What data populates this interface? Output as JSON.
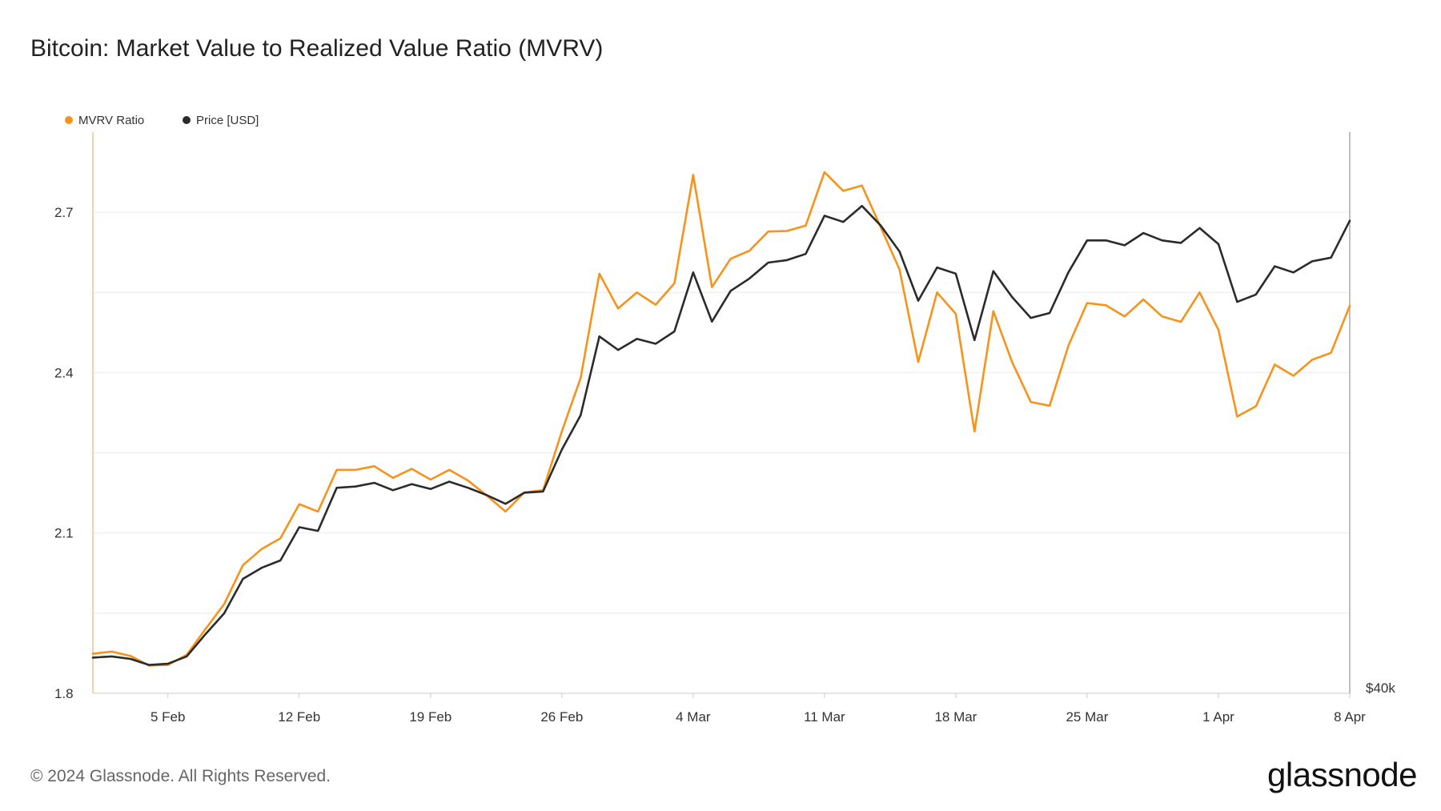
{
  "title": "Bitcoin: Market Value to Realized Value Ratio (MVRV)",
  "footer": {
    "copyright": "© 2024 Glassnode. All Rights Reserved.",
    "brand": "glassnode"
  },
  "colors": {
    "mvrv": "#f7931a",
    "price": "#2b2b2b",
    "grid": "#ececec",
    "axis": "#cccccc"
  },
  "chart_data": {
    "type": "line",
    "title": "Bitcoin: Market Value to Realized Value Ratio (MVRV)",
    "legend_position": "top-left",
    "grid": true,
    "x_start": "2024-02-01",
    "x_end": "2024-04-08",
    "x_ticks": [
      "5 Feb",
      "12 Feb",
      "19 Feb",
      "26 Feb",
      "4 Mar",
      "11 Mar",
      "18 Mar",
      "25 Mar",
      "1 Apr",
      "8 Apr"
    ],
    "y_left": {
      "ticks": [
        "1.8",
        "2.1",
        "2.4",
        "2.7"
      ],
      "ylim": [
        1.8,
        2.85
      ]
    },
    "y_right": {
      "ticks": [
        "$40k"
      ]
    },
    "series": [
      {
        "name": "MVRV Ratio",
        "axis": "left",
        "values": [
          1.874,
          1.878,
          1.87,
          1.852,
          1.853,
          1.872,
          1.92,
          1.967,
          2.04,
          2.07,
          2.09,
          2.154,
          2.14,
          2.218,
          2.218,
          2.225,
          2.203,
          2.22,
          2.2,
          2.218,
          2.198,
          2.17,
          2.14,
          2.176,
          2.18,
          2.29,
          2.39,
          2.585,
          2.52,
          2.55,
          2.527,
          2.567,
          2.77,
          2.56,
          2.613,
          2.628,
          2.664,
          2.665,
          2.675,
          2.775,
          2.74,
          2.75,
          2.672,
          2.593,
          2.42,
          2.55,
          2.51,
          2.29,
          2.515,
          2.42,
          2.345,
          2.338,
          2.45,
          2.53,
          2.526,
          2.505,
          2.537,
          2.505,
          2.495,
          2.55,
          2.48,
          2.318,
          2.337,
          2.415,
          2.394,
          2.424,
          2.437,
          2.525
        ]
      },
      {
        "name": "Price [USD]",
        "axis": "right",
        "values": [
          42900,
          43000,
          42800,
          42300,
          42400,
          43000,
          44800,
          46500,
          49300,
          50200,
          50800,
          53500,
          53200,
          56700,
          56800,
          57100,
          56500,
          57000,
          56600,
          57200,
          56700,
          56100,
          55400,
          56300,
          56400,
          59800,
          62600,
          69000,
          67900,
          68800,
          68400,
          69400,
          74200,
          70200,
          72700,
          73700,
          75000,
          75200,
          75700,
          78800,
          78300,
          79600,
          78000,
          75900,
          71900,
          74600,
          74100,
          68700,
          74300,
          72200,
          70500,
          70900,
          74200,
          76800,
          76800,
          76400,
          77400,
          76800,
          76600,
          77800,
          76500,
          71800,
          72400,
          74700,
          74200,
          75100,
          75400,
          78400
        ]
      }
    ]
  }
}
